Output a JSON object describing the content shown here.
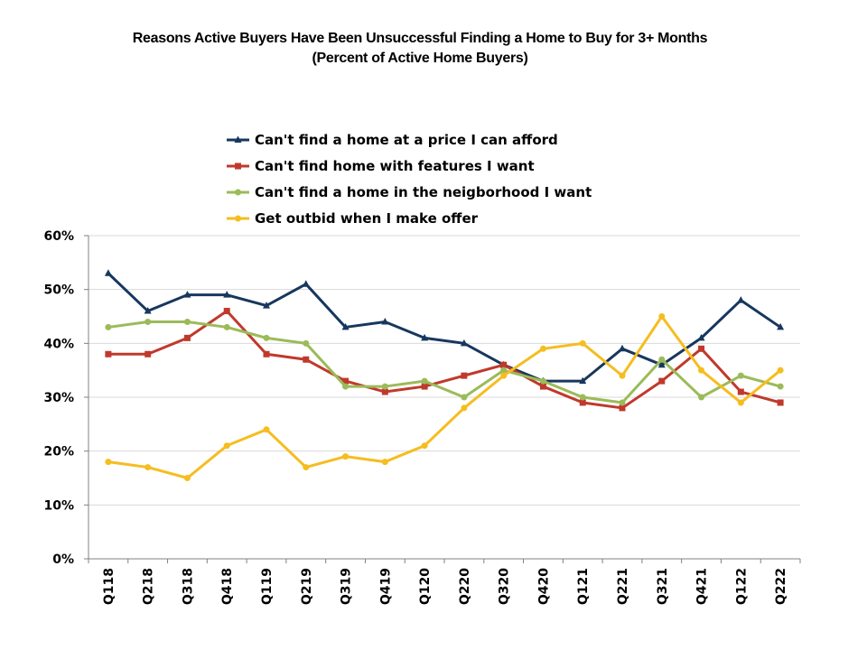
{
  "chart_data": {
    "type": "line",
    "title": "Reasons Active Buyers Have Been Unsuccessful Finding a Home to Buy for 3+ Months",
    "subtitle": "(Percent of Active Home Buyers)",
    "xlabel": "",
    "ylabel": "",
    "ylim": [
      0,
      60
    ],
    "y_ticks": [
      "0%",
      "10%",
      "20%",
      "30%",
      "40%",
      "50%",
      "60%"
    ],
    "y_tick_values": [
      0,
      10,
      20,
      30,
      40,
      50,
      60
    ],
    "grid": true,
    "legend_position": "top",
    "categories": [
      "Q118",
      "Q218",
      "Q318",
      "Q418",
      "Q119",
      "Q219",
      "Q319",
      "Q419",
      "Q120",
      "Q220",
      "Q320",
      "Q420",
      "Q121",
      "Q221",
      "Q321",
      "Q421",
      "Q122",
      "Q222"
    ],
    "series": [
      {
        "name": "Can't find a home at a price I can afford",
        "color": "#17375E",
        "marker": "triangle",
        "values": [
          53,
          46,
          49,
          49,
          47,
          51,
          43,
          44,
          41,
          40,
          36,
          33,
          33,
          39,
          36,
          41,
          48,
          43
        ]
      },
      {
        "name": "Can't find home with features I want",
        "color": "#C0392B",
        "marker": "square",
        "values": [
          38,
          38,
          41,
          46,
          38,
          37,
          33,
          31,
          32,
          34,
          36,
          32,
          29,
          28,
          33,
          39,
          31,
          29
        ]
      },
      {
        "name": "Can't find a home in the neigborhood I want",
        "color": "#9BBB59",
        "marker": "circle",
        "values": [
          43,
          44,
          44,
          43,
          41,
          40,
          32,
          32,
          33,
          30,
          35,
          33,
          30,
          29,
          37,
          30,
          34,
          32
        ]
      },
      {
        "name": "Get outbid when I make offer",
        "color": "#F5BD1F",
        "marker": "circle",
        "values": [
          18,
          17,
          15,
          21,
          24,
          17,
          19,
          18,
          21,
          28,
          34,
          39,
          40,
          34,
          45,
          35,
          29,
          35
        ]
      }
    ]
  }
}
